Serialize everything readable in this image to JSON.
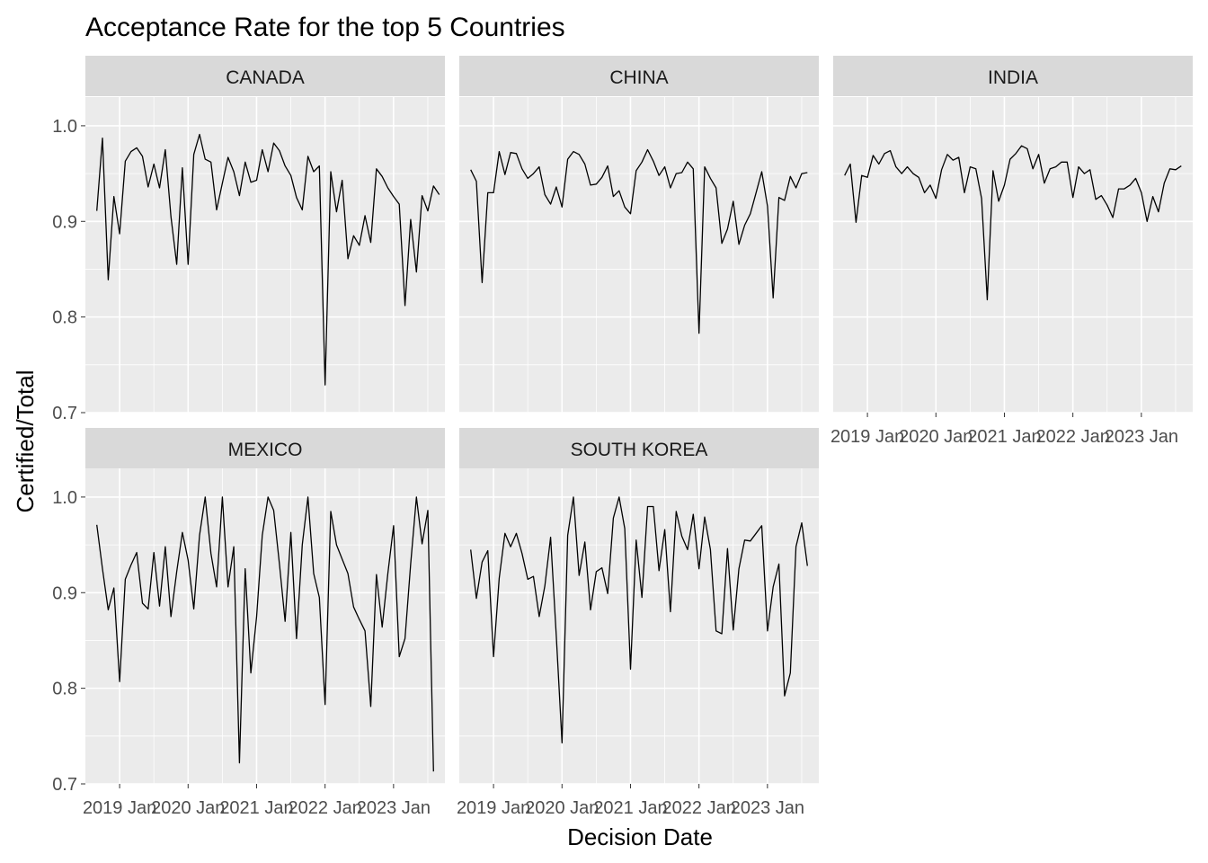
{
  "chart_data": {
    "type": "line",
    "title": "Acceptance Rate for the top 5 Countries",
    "xlabel": "Decision Date",
    "ylabel": "Certified/Total",
    "x_ticks": [
      "2019 Jan",
      "2020 Jan",
      "2021 Jan",
      "2022 Jan",
      "2023 Jan"
    ],
    "y_ticks": [
      "0.7",
      "0.8",
      "0.9",
      "1.0"
    ],
    "ylim": [
      0.7,
      1.03
    ],
    "xlim": [
      "2018-07",
      "2023-10"
    ],
    "grid": true,
    "facet_layout": "3 columns, 2 rows",
    "colors": {
      "panel_bg": "#ebebeb",
      "strip_bg": "#d9d9d9",
      "grid": "#ffffff",
      "line": "#000000"
    },
    "series": [
      {
        "name": "CANADA",
        "x_start": "2018-09",
        "values": [
          0.911,
          0.987,
          0.839,
          0.926,
          0.887,
          0.963,
          0.973,
          0.977,
          0.968,
          0.936,
          0.96,
          0.935,
          0.975,
          0.905,
          0.855,
          0.956,
          0.855,
          0.97,
          0.991,
          0.965,
          0.962,
          0.912,
          0.94,
          0.967,
          0.952,
          0.927,
          0.962,
          0.941,
          0.943,
          0.975,
          0.952,
          0.982,
          0.974,
          0.958,
          0.948,
          0.925,
          0.912,
          0.968,
          0.952,
          0.958,
          0.729,
          0.952,
          0.91,
          0.943,
          0.861,
          0.885,
          0.875,
          0.906,
          0.878,
          0.955,
          0.947,
          0.935,
          0.926,
          0.918,
          0.812,
          0.902,
          0.847,
          0.927,
          0.911,
          0.937,
          0.928
        ]
      },
      {
        "name": "CHINA",
        "x_start": "2018-09",
        "values": [
          0.954,
          0.942,
          0.836,
          0.93,
          0.93,
          0.973,
          0.949,
          0.972,
          0.971,
          0.955,
          0.945,
          0.95,
          0.957,
          0.928,
          0.918,
          0.936,
          0.915,
          0.965,
          0.973,
          0.97,
          0.96,
          0.938,
          0.939,
          0.946,
          0.958,
          0.926,
          0.932,
          0.915,
          0.908,
          0.953,
          0.962,
          0.975,
          0.963,
          0.948,
          0.957,
          0.935,
          0.95,
          0.951,
          0.962,
          0.955,
          0.783,
          0.957,
          0.945,
          0.935,
          0.877,
          0.892,
          0.921,
          0.876,
          0.896,
          0.908,
          0.93,
          0.952,
          0.916,
          0.82,
          0.925,
          0.922,
          0.947,
          0.935,
          0.95,
          0.951
        ]
      },
      {
        "name": "INDIA",
        "x_start": "2018-09",
        "values": [
          0.948,
          0.96,
          0.899,
          0.948,
          0.946,
          0.969,
          0.96,
          0.971,
          0.974,
          0.957,
          0.95,
          0.957,
          0.95,
          0.946,
          0.93,
          0.938,
          0.924,
          0.954,
          0.97,
          0.964,
          0.967,
          0.93,
          0.957,
          0.955,
          0.924,
          0.818,
          0.953,
          0.921,
          0.938,
          0.965,
          0.971,
          0.979,
          0.976,
          0.955,
          0.97,
          0.94,
          0.955,
          0.957,
          0.962,
          0.962,
          0.925,
          0.957,
          0.95,
          0.954,
          0.923,
          0.927,
          0.917,
          0.904,
          0.934,
          0.934,
          0.938,
          0.945,
          0.93,
          0.9,
          0.926,
          0.91,
          0.94,
          0.955,
          0.954,
          0.958
        ]
      },
      {
        "name": "MEXICO",
        "x_start": "2018-09",
        "values": [
          0.971,
          0.925,
          0.882,
          0.905,
          0.807,
          0.914,
          0.929,
          0.942,
          0.889,
          0.883,
          0.942,
          0.886,
          0.948,
          0.875,
          0.922,
          0.963,
          0.934,
          0.883,
          0.96,
          1.0,
          0.941,
          0.906,
          1.0,
          0.906,
          0.948,
          0.722,
          0.925,
          0.816,
          0.875,
          0.96,
          1.0,
          0.986,
          0.93,
          0.87,
          0.963,
          0.852,
          0.95,
          1.0,
          0.92,
          0.895,
          0.783,
          0.985,
          0.95,
          0.935,
          0.92,
          0.885,
          0.872,
          0.86,
          0.781,
          0.919,
          0.864,
          0.92,
          0.97,
          0.833,
          0.852,
          0.93,
          1.0,
          0.951,
          0.986,
          0.713
        ]
      },
      {
        "name": "SOUTH KOREA",
        "x_start": "2018-09",
        "values": [
          0.945,
          0.894,
          0.932,
          0.944,
          0.833,
          0.915,
          0.962,
          0.948,
          0.962,
          0.941,
          0.914,
          0.917,
          0.875,
          0.907,
          0.958,
          0.855,
          0.743,
          0.96,
          1.0,
          0.918,
          0.953,
          0.882,
          0.922,
          0.926,
          0.899,
          0.978,
          1.0,
          0.967,
          0.82,
          0.955,
          0.895,
          0.99,
          0.99,
          0.923,
          0.966,
          0.88,
          0.985,
          0.959,
          0.945,
          0.982,
          0.925,
          0.979,
          0.945,
          0.86,
          0.857,
          0.946,
          0.861,
          0.925,
          0.955,
          0.954,
          0.962,
          0.97,
          0.86,
          0.906,
          0.93,
          0.792,
          0.816,
          0.948,
          0.973,
          0.928
        ]
      }
    ]
  }
}
